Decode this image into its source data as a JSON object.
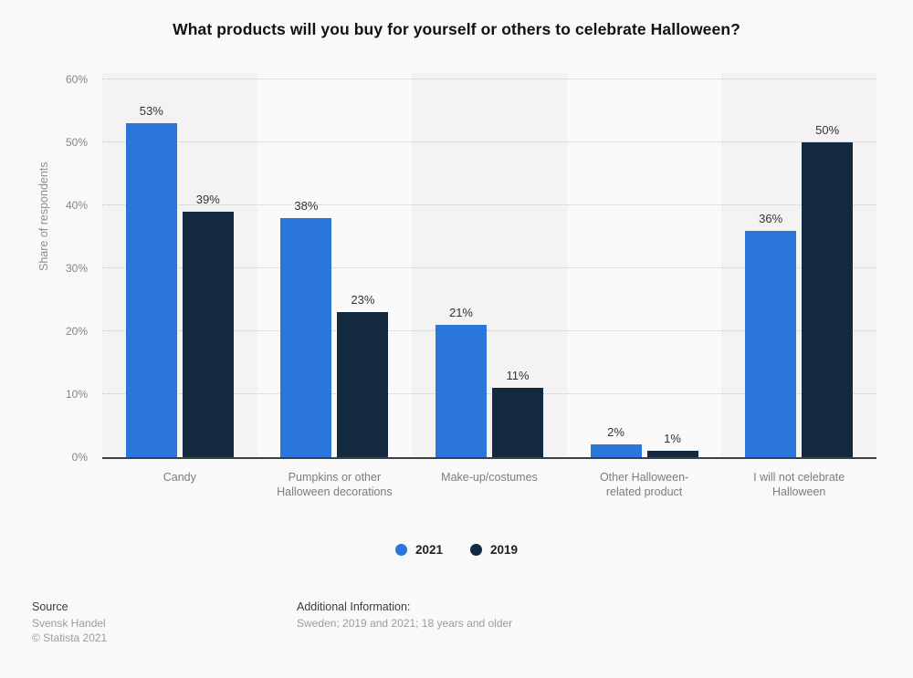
{
  "title": "What products will you buy for yourself or others to celebrate Halloween?",
  "chart_data": {
    "type": "bar",
    "title": "What products will you buy for yourself or others to celebrate Halloween?",
    "categories": [
      "Candy",
      "Pumpkins or other Halloween decorations",
      "Make-up/costumes",
      "Other Halloween-related product",
      "I will not celebrate Halloween"
    ],
    "category_display": [
      "Candy",
      "Pumpkins or other\nHalloween decorations",
      "Make-up/costumes",
      "Other Halloween-\nrelated product",
      "I will not celebrate\nHalloween"
    ],
    "series": [
      {
        "name": "2021",
        "color": "#2b76da",
        "values": [
          53,
          38,
          21,
          2,
          36
        ]
      },
      {
        "name": "2019",
        "color": "#12293f",
        "values": [
          39,
          23,
          11,
          1,
          50
        ]
      }
    ],
    "xlabel": "",
    "ylabel": "Share of respondents",
    "yticks": [
      0,
      10,
      20,
      30,
      40,
      50,
      60
    ],
    "ytick_suffix": "%",
    "ylim": [
      0,
      61
    ],
    "value_suffix": "%",
    "grid": "horizontal-dotted",
    "legend_position": "bottom",
    "band_colors": [
      "#f3f3f4",
      "#fafafb"
    ]
  },
  "footer": {
    "source_label": "Source",
    "source_lines": [
      "Svensk Handel",
      "© Statista 2021"
    ],
    "additional_label": "Additional Information:",
    "additional_lines": [
      "Sweden; 2019 and 2021; 18 years and older"
    ]
  },
  "colors": {
    "background": "#f9f9f9",
    "axis_line": "#3b4045",
    "gridline": "#c9c9c9",
    "series_2021": "#2b76da",
    "series_2019": "#12293f"
  }
}
